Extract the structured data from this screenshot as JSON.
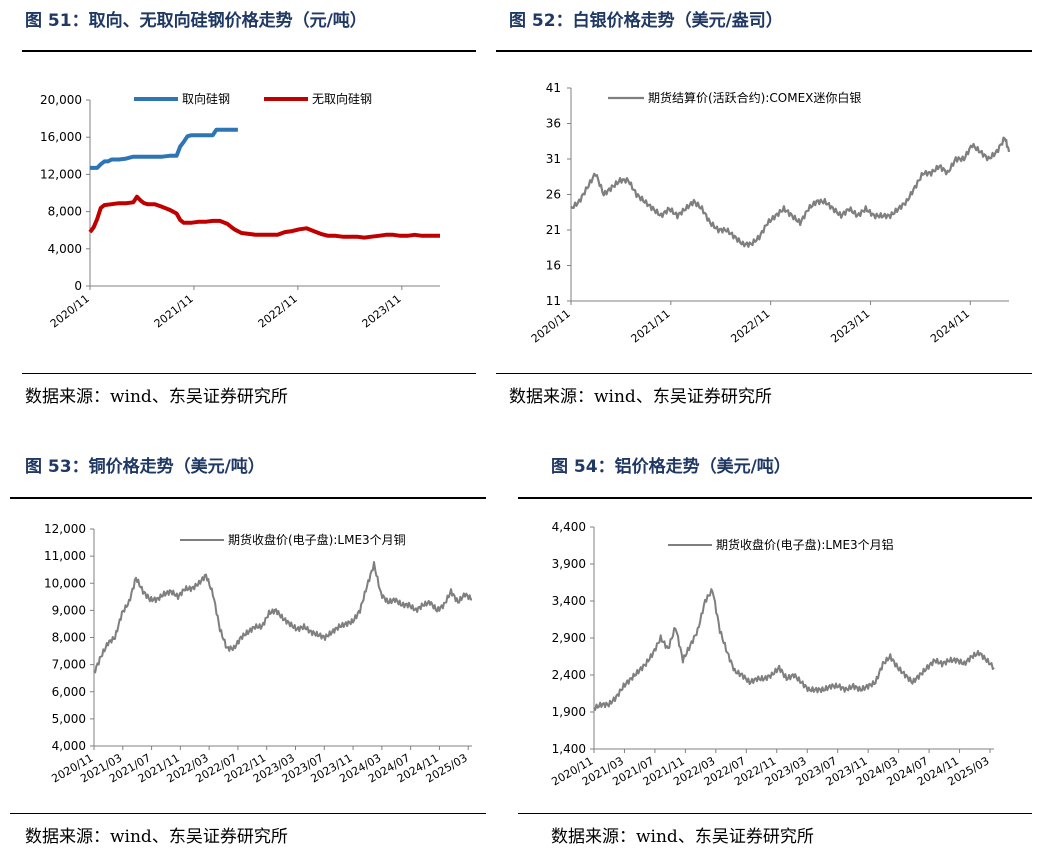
{
  "chart_data": [
    {
      "figure_title": "图 51：取向、无取向硅钢价格走势（元/吨）",
      "type": "line",
      "source": "数据来源：wind、东吴证券研究所",
      "title": "",
      "xlabel": "",
      "ylabel": "",
      "ylim": [
        0,
        20000
      ],
      "y_ticks": [
        0,
        4000,
        8000,
        12000,
        16000,
        20000
      ],
      "y_tick_labels": [
        "0",
        "4,000",
        "8,000",
        "12,000",
        "16,000",
        "20,000"
      ],
      "x_ticks": [
        "2020/11",
        "2021/11",
        "2022/11",
        "2023/11"
      ],
      "grid": false,
      "legend": "top",
      "x_range": [
        0,
        48.5
      ],
      "series": [
        {
          "name": "取向硅钢",
          "color": "#2e75b6",
          "x": [
            0,
            1,
            1.5,
            2,
            2.5,
            3,
            4,
            5,
            6,
            7,
            8,
            9,
            10,
            11,
            12,
            12.5,
            13,
            13.5,
            14,
            15,
            16,
            17,
            17.5,
            18,
            20.5
          ],
          "y": [
            12700,
            12700,
            13100,
            13400,
            13400,
            13600,
            13600,
            13700,
            13900,
            13900,
            13900,
            13900,
            13900,
            14000,
            14000,
            15000,
            15500,
            16100,
            16200,
            16200,
            16200,
            16200,
            16800,
            16800,
            16800
          ]
        },
        {
          "name": "无取向硅钢",
          "color": "#c00000",
          "x": [
            0,
            0.5,
            1,
            1.5,
            2,
            3,
            4,
            5,
            6,
            6.5,
            7,
            7.5,
            8,
            9,
            10,
            11,
            12,
            12.5,
            13,
            14,
            15,
            16,
            17,
            18,
            19,
            20,
            21,
            22,
            23,
            24,
            25,
            26,
            27,
            28,
            29,
            30,
            31,
            32,
            33,
            34,
            35,
            36,
            37,
            38,
            39,
            40,
            41,
            42,
            43,
            44,
            45,
            46,
            47,
            48.5
          ],
          "y": [
            5800,
            6300,
            7200,
            8400,
            8700,
            8800,
            8900,
            8900,
            9000,
            9600,
            9200,
            8900,
            8800,
            8800,
            8500,
            8200,
            7800,
            7100,
            6800,
            6800,
            6900,
            6900,
            7000,
            7000,
            6700,
            6100,
            5700,
            5600,
            5500,
            5500,
            5500,
            5500,
            5800,
            5900,
            6100,
            6200,
            5900,
            5600,
            5400,
            5400,
            5300,
            5300,
            5300,
            5200,
            5300,
            5400,
            5500,
            5500,
            5400,
            5400,
            5500,
            5400,
            5400,
            5400
          ]
        }
      ]
    },
    {
      "figure_title": "图 52：白银价格走势（美元/盎司）",
      "type": "line",
      "source": "数据来源：wind、东吴证券研究所",
      "title": "",
      "xlabel": "",
      "ylabel": "",
      "ylim": [
        11,
        41
      ],
      "y_ticks": [
        11,
        16,
        21,
        26,
        31,
        36,
        41
      ],
      "y_tick_labels": [
        "11",
        "16",
        "21",
        "26",
        "31",
        "36",
        "41"
      ],
      "x_ticks": [
        "2020/11",
        "2021/11",
        "2022/11",
        "2023/11",
        "2024/11"
      ],
      "grid": false,
      "legend": "top-left",
      "x_range": [
        0,
        53.5
      ],
      "series": [
        {
          "name": "期货结算价(活跃合约):COMEX迷你白银",
          "color": "#7f7f7f",
          "x": [
            0,
            1,
            2,
            3,
            4,
            5,
            6,
            7,
            8,
            9,
            10,
            11,
            12,
            13,
            14,
            15,
            16,
            17,
            18,
            19,
            20,
            21,
            22,
            23,
            24,
            25,
            26,
            27,
            28,
            29,
            30,
            31,
            32,
            33,
            34,
            35,
            36,
            37,
            38,
            39,
            40,
            41,
            42,
            43,
            44,
            45,
            46,
            47,
            48,
            49,
            50,
            51,
            52,
            53,
            53.5
          ],
          "y": [
            24,
            25,
            27,
            29,
            26,
            27,
            28,
            28,
            26,
            25,
            24,
            23,
            24,
            23,
            24,
            25,
            24,
            22,
            21,
            21,
            20,
            19,
            19,
            20,
            22,
            23,
            24,
            23,
            22,
            24,
            25,
            25,
            24,
            23,
            24,
            23,
            24,
            23,
            23,
            23,
            24,
            25,
            27,
            29,
            29,
            30,
            29,
            31,
            31,
            33,
            32,
            31,
            32,
            34,
            32
          ]
        }
      ]
    },
    {
      "figure_title": "图 53：铜价格走势（美元/吨）",
      "type": "line",
      "source": "数据来源：wind、东吴证券研究所",
      "title": "",
      "xlabel": "",
      "ylabel": "",
      "ylim": [
        4000,
        12000
      ],
      "y_ticks": [
        4000,
        5000,
        6000,
        7000,
        8000,
        9000,
        10000,
        11000,
        12000
      ],
      "y_tick_labels": [
        "4,000",
        "5,000",
        "6,000",
        "7,000",
        "8,000",
        "9,000",
        "10,000",
        "11,000",
        "12,000"
      ],
      "x_ticks": [
        "2020/11",
        "2021/03",
        "2021/07",
        "2021/11",
        "2022/03",
        "2022/07",
        "2022/11",
        "2023/03",
        "2023/07",
        "2023/11",
        "2024/03",
        "2024/07",
        "2024/11",
        "2025/03"
      ],
      "grid": false,
      "legend": "top-right",
      "x_range": [
        0,
        54
      ],
      "series": [
        {
          "name": "期货收盘价(电子盘):LME3个月铜",
          "color": "#7f7f7f",
          "x": [
            0,
            1,
            2,
            3,
            4,
            5,
            6,
            7,
            8,
            9,
            10,
            11,
            12,
            13,
            14,
            15,
            16,
            17,
            18,
            19,
            20,
            21,
            22,
            23,
            24,
            25,
            26,
            27,
            28,
            29,
            30,
            31,
            32,
            33,
            34,
            35,
            36,
            37,
            38,
            39,
            40,
            41,
            42,
            43,
            44,
            45,
            46,
            47,
            48,
            49,
            50,
            51,
            52,
            53,
            54
          ],
          "y": [
            6700,
            7300,
            7800,
            8000,
            8900,
            9300,
            10200,
            9700,
            9400,
            9400,
            9600,
            9700,
            9500,
            9800,
            9800,
            10000,
            10300,
            9600,
            8300,
            7600,
            7600,
            8000,
            8200,
            8400,
            8400,
            8900,
            9000,
            8700,
            8500,
            8300,
            8400,
            8200,
            8100,
            8000,
            8200,
            8400,
            8500,
            8600,
            9000,
            9900,
            10700,
            9600,
            9300,
            9400,
            9200,
            9200,
            9000,
            9200,
            9300,
            9000,
            9200,
            9700,
            9300,
            9600,
            9400
          ]
        }
      ]
    },
    {
      "figure_title": "图 54：铝价格走势（美元/吨）",
      "type": "line",
      "source": "数据来源：wind、东吴证券研究所",
      "title": "",
      "xlabel": "",
      "ylabel": "",
      "ylim": [
        1400,
        4400
      ],
      "y_ticks": [
        1400,
        1900,
        2400,
        2900,
        3400,
        3900,
        4400
      ],
      "y_tick_labels": [
        "1,400",
        "1,900",
        "2,400",
        "2,900",
        "3,400",
        "3,900",
        "4,400"
      ],
      "x_ticks": [
        "2020/11",
        "2021/03",
        "2021/07",
        "2021/11",
        "2022/03",
        "2022/07",
        "2022/11",
        "2023/03",
        "2023/07",
        "2023/11",
        "2024/03",
        "2024/07",
        "2024/11",
        "2025/03"
      ],
      "grid": false,
      "legend": "top-right",
      "x_range": [
        0,
        54
      ],
      "series": [
        {
          "name": "期货收盘价(电子盘):LME3个月铝",
          "color": "#7f7f7f",
          "x": [
            0,
            1,
            2,
            3,
            4,
            5,
            6,
            7,
            8,
            9,
            10,
            11,
            12,
            13,
            14,
            15,
            16,
            17,
            18,
            19,
            20,
            21,
            22,
            23,
            24,
            25,
            26,
            27,
            28,
            29,
            30,
            31,
            32,
            33,
            34,
            35,
            36,
            37,
            38,
            39,
            40,
            41,
            42,
            43,
            44,
            45,
            46,
            47,
            48,
            49,
            50,
            51,
            52,
            53,
            54
          ],
          "y": [
            1950,
            2000,
            2000,
            2100,
            2250,
            2350,
            2450,
            2550,
            2700,
            2900,
            2750,
            3050,
            2600,
            2800,
            3000,
            3400,
            3550,
            3000,
            2700,
            2450,
            2400,
            2300,
            2350,
            2350,
            2400,
            2500,
            2350,
            2400,
            2300,
            2200,
            2200,
            2200,
            2250,
            2250,
            2200,
            2250,
            2200,
            2250,
            2300,
            2550,
            2650,
            2500,
            2400,
            2300,
            2400,
            2500,
            2600,
            2550,
            2600,
            2600,
            2550,
            2650,
            2700,
            2600,
            2500
          ]
        }
      ]
    }
  ]
}
